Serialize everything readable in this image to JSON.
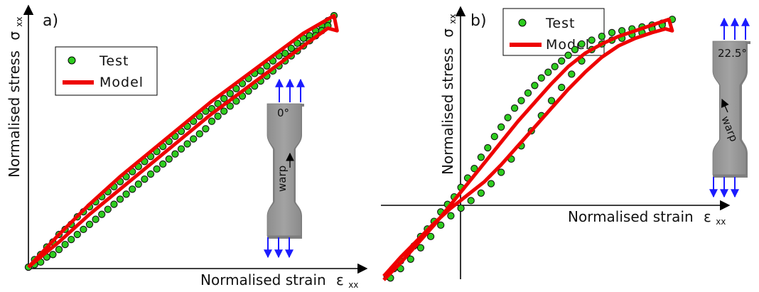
{
  "chart_data": [
    {
      "panel": "a)",
      "type": "scatter",
      "xlabel": "Normalised strain",
      "xlabel_symbol": "ε",
      "xlabel_sub": "xx",
      "ylabel": "Normalised stress",
      "ylabel_symbol": "σ",
      "ylabel_sub": "xx",
      "xlim": [
        0,
        1
      ],
      "ylim": [
        0,
        1
      ],
      "grid": false,
      "legend": {
        "placement": "top-left",
        "entries": [
          "Test",
          "Model"
        ]
      },
      "specimen": {
        "angle_label": "0°",
        "direction_label": "warp"
      },
      "series": [
        {
          "name": "Test",
          "marker": "circle",
          "color": "#2ecc1f",
          "x": [
            0.0,
            0.02,
            0.04,
            0.06,
            0.08,
            0.1,
            0.12,
            0.14,
            0.16,
            0.18,
            0.2,
            0.22,
            0.24,
            0.26,
            0.28,
            0.3,
            0.32,
            0.34,
            0.36,
            0.38,
            0.4,
            0.42,
            0.44,
            0.46,
            0.48,
            0.5,
            0.52,
            0.54,
            0.56,
            0.58,
            0.6,
            0.62,
            0.64,
            0.66,
            0.68,
            0.7,
            0.72,
            0.74,
            0.76,
            0.78,
            0.8,
            0.82,
            0.84,
            0.86,
            0.88,
            0.9,
            0.92,
            0.94,
            0.96,
            0.98,
            1.0,
            0.98,
            0.96,
            0.94,
            0.92,
            0.9,
            0.88,
            0.86,
            0.84,
            0.82,
            0.8,
            0.78,
            0.76,
            0.74,
            0.72,
            0.7,
            0.68,
            0.66,
            0.64,
            0.62,
            0.6,
            0.58,
            0.56,
            0.54,
            0.52,
            0.5,
            0.48,
            0.46,
            0.44,
            0.42,
            0.4,
            0.38,
            0.36,
            0.34,
            0.32,
            0.3,
            0.28,
            0.26,
            0.24,
            0.22,
            0.2,
            0.18,
            0.16,
            0.14,
            0.12,
            0.1,
            0.08,
            0.06,
            0.04,
            0.02,
            0.0
          ],
          "y": [
            0.0,
            0.03,
            0.05,
            0.08,
            0.1,
            0.13,
            0.15,
            0.17,
            0.2,
            0.22,
            0.24,
            0.26,
            0.28,
            0.3,
            0.32,
            0.34,
            0.36,
            0.38,
            0.4,
            0.42,
            0.44,
            0.46,
            0.48,
            0.5,
            0.52,
            0.54,
            0.56,
            0.58,
            0.6,
            0.62,
            0.63,
            0.65,
            0.67,
            0.69,
            0.71,
            0.73,
            0.75,
            0.77,
            0.78,
            0.8,
            0.82,
            0.84,
            0.85,
            0.87,
            0.89,
            0.91,
            0.92,
            0.94,
            0.96,
            0.98,
            1.0,
            0.96,
            0.94,
            0.92,
            0.9,
            0.88,
            0.86,
            0.84,
            0.82,
            0.8,
            0.78,
            0.76,
            0.74,
            0.72,
            0.7,
            0.68,
            0.66,
            0.64,
            0.62,
            0.6,
            0.58,
            0.55,
            0.53,
            0.51,
            0.49,
            0.47,
            0.45,
            0.43,
            0.41,
            0.39,
            0.37,
            0.35,
            0.33,
            0.31,
            0.29,
            0.27,
            0.25,
            0.23,
            0.21,
            0.19,
            0.17,
            0.15,
            0.13,
            0.11,
            0.09,
            0.07,
            0.05,
            0.04,
            0.02,
            0.01,
            0.0
          ]
        },
        {
          "name": "Model",
          "marker": "line",
          "color": "#ee0000",
          "x": [
            0.0,
            0.1,
            0.2,
            0.3,
            0.4,
            0.5,
            0.6,
            0.7,
            0.8,
            0.9,
            1.0,
            1.01,
            0.98,
            0.9,
            0.8,
            0.7,
            0.6,
            0.5,
            0.4,
            0.3,
            0.2,
            0.1,
            0.0
          ],
          "y": [
            0.0,
            0.13,
            0.25,
            0.36,
            0.46,
            0.56,
            0.66,
            0.75,
            0.84,
            0.93,
            1.0,
            0.94,
            0.95,
            0.88,
            0.79,
            0.7,
            0.61,
            0.51,
            0.41,
            0.31,
            0.21,
            0.1,
            0.0
          ]
        }
      ]
    },
    {
      "panel": "b)",
      "type": "scatter",
      "xlabel": "Normalised strain",
      "xlabel_symbol": "ε",
      "xlabel_sub": "xx",
      "ylabel": "Normalised stress",
      "ylabel_symbol": "σ",
      "ylabel_sub": "xx",
      "xlim": [
        -0.2,
        0.8
      ],
      "ylim": [
        -0.4,
        1.0
      ],
      "grid": false,
      "legend": {
        "placement": "top-left",
        "entries": [
          "Test",
          "Model"
        ]
      },
      "specimen": {
        "angle_label": "22.5°",
        "direction_label": "warp"
      },
      "series": [
        {
          "name": "Test",
          "marker": "circle",
          "color": "#2ecc1f",
          "x": [
            -0.19,
            -0.17,
            -0.15,
            -0.13,
            -0.11,
            -0.09,
            -0.07,
            -0.05,
            -0.03,
            -0.01,
            0.01,
            0.03,
            0.05,
            0.07,
            0.09,
            0.11,
            0.13,
            0.15,
            0.17,
            0.19,
            0.21,
            0.23,
            0.25,
            0.27,
            0.29,
            0.31,
            0.33,
            0.35,
            0.37,
            0.39,
            0.42,
            0.45,
            0.48,
            0.51,
            0.54,
            0.57,
            0.6,
            0.63,
            0.66,
            0.63,
            0.6,
            0.57,
            0.54,
            0.51,
            0.48,
            0.45,
            0.42,
            0.39,
            0.36,
            0.33,
            0.3,
            0.27,
            0.24,
            0.21,
            0.18,
            0.15,
            0.12,
            0.09,
            0.06,
            0.03,
            0.0,
            -0.03,
            -0.06,
            -0.09,
            -0.12,
            -0.15,
            -0.18
          ],
          "y": [
            -0.38,
            -0.34,
            -0.3,
            -0.26,
            -0.22,
            -0.17,
            -0.13,
            -0.09,
            -0.04,
            0.0,
            0.04,
            0.09,
            0.14,
            0.19,
            0.25,
            0.3,
            0.36,
            0.41,
            0.46,
            0.51,
            0.55,
            0.59,
            0.63,
            0.67,
            0.7,
            0.73,
            0.76,
            0.79,
            0.82,
            0.85,
            0.87,
            0.89,
            0.91,
            0.92,
            0.93,
            0.94,
            0.95,
            0.96,
            0.98,
            0.95,
            0.93,
            0.91,
            0.9,
            0.88,
            0.87,
            0.85,
            0.82,
            0.76,
            0.69,
            0.62,
            0.55,
            0.47,
            0.39,
            0.31,
            0.24,
            0.17,
            0.11,
            0.06,
            0.02,
            -0.02,
            -0.06,
            -0.11,
            -0.17,
            -0.23,
            -0.29,
            -0.34,
            -0.39
          ]
        },
        {
          "name": "Model",
          "marker": "line",
          "color": "#ee0000",
          "x": [
            -0.2,
            -0.15,
            -0.1,
            -0.05,
            0.0,
            0.05,
            0.1,
            0.15,
            0.2,
            0.25,
            0.3,
            0.35,
            0.4,
            0.45,
            0.5,
            0.55,
            0.6,
            0.65,
            0.66,
            0.64,
            0.6,
            0.55,
            0.5,
            0.45,
            0.4,
            0.35,
            0.3,
            0.25,
            0.2,
            0.15,
            0.1,
            0.05,
            0.0,
            -0.05,
            -0.1,
            -0.15,
            -0.2
          ],
          "y": [
            -0.4,
            -0.31,
            -0.21,
            -0.11,
            0.0,
            0.11,
            0.22,
            0.33,
            0.44,
            0.54,
            0.64,
            0.73,
            0.8,
            0.85,
            0.89,
            0.92,
            0.95,
            0.98,
            0.92,
            0.93,
            0.91,
            0.88,
            0.84,
            0.78,
            0.7,
            0.61,
            0.51,
            0.41,
            0.31,
            0.21,
            0.12,
            0.05,
            -0.02,
            -0.1,
            -0.19,
            -0.28,
            -0.38
          ]
        }
      ]
    }
  ]
}
